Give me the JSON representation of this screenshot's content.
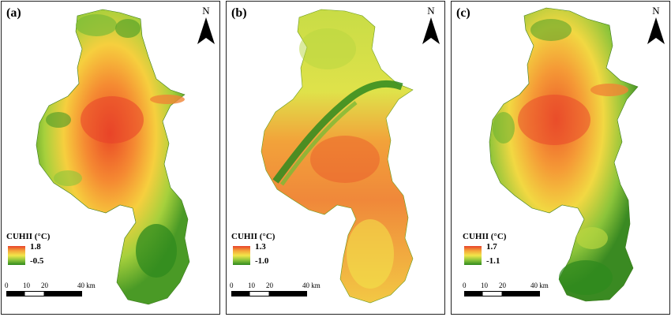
{
  "panels": [
    {
      "label": "(a)",
      "north": "N",
      "legend": {
        "title": "CUHII (°C)",
        "max": "1.8",
        "min": "-0.5",
        "colors": [
          "#e8402a",
          "#f4a63a",
          "#f2e64a",
          "#8cc43a",
          "#2f8a1e"
        ]
      },
      "scale": {
        "ticks": [
          "0",
          "10",
          "20",
          "40 km"
        ]
      }
    },
    {
      "label": "(b)",
      "north": "N",
      "legend": {
        "title": "CUHII (°C)",
        "max": "1.3",
        "min": "-1.0",
        "colors": [
          "#e8402a",
          "#f4a63a",
          "#f2e64a",
          "#8cc43a",
          "#2f8a1e"
        ]
      },
      "scale": {
        "ticks": [
          "0",
          "10",
          "20",
          "40 km"
        ]
      }
    },
    {
      "label": "(c)",
      "north": "N",
      "legend": {
        "title": "CUHII (°C)",
        "max": "1.7",
        "min": "-1.1",
        "colors": [
          "#e8402a",
          "#f4a63a",
          "#f2e64a",
          "#8cc43a",
          "#2f8a1e"
        ]
      },
      "scale": {
        "ticks": [
          "0",
          "10",
          "20",
          "40 km"
        ]
      }
    }
  ]
}
